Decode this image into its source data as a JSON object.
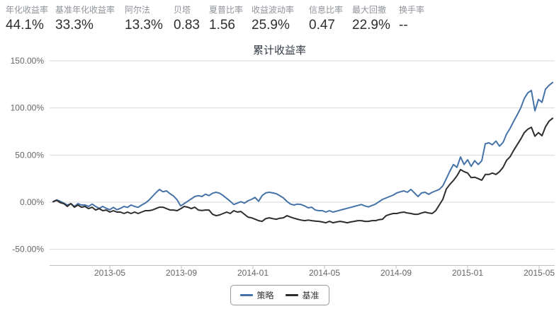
{
  "stats": {
    "items": [
      {
        "label": "年化收益率",
        "value": "44.1%"
      },
      {
        "label": "基准年化收益率",
        "value": "33.3%"
      },
      {
        "label": "阿尔法",
        "value": "13.3%"
      },
      {
        "label": "贝塔",
        "value": "0.83"
      },
      {
        "label": "夏普比率",
        "value": "1.56"
      },
      {
        "label": "收益波动率",
        "value": "25.9%"
      },
      {
        "label": "信息比率",
        "value": "0.47"
      },
      {
        "label": "最大回撤",
        "value": "22.9%"
      },
      {
        "label": "换手率",
        "value": "--"
      }
    ]
  },
  "chart_data": {
    "type": "line",
    "title": "累计收益率",
    "y_unit": "percent",
    "ylim": [
      -50,
      150
    ],
    "grid": "horizontal-on",
    "legend_position": "bottom-center",
    "x_tick_labels": [
      "2013-05",
      "2013-09",
      "2014-01",
      "2014-05",
      "2014-09",
      "2015-01",
      "2015-05"
    ],
    "y_tick_labels": [
      "150.00%",
      "100.00%",
      "50.00%",
      "0.00%",
      "-50.00%"
    ],
    "x_range_months": "2013-01 to 2015-05",
    "colors": {
      "grid": "#d9d9d9",
      "axis": "#c0c0c0",
      "axis_text": "#666666"
    },
    "series": [
      {
        "name": "策略",
        "color": "#4572a7",
        "values": [
          0.5,
          2.5,
          1,
          -1,
          -3,
          -1.5,
          -4.5,
          -1.5,
          -3,
          -3,
          -4.5,
          -2,
          -4.5,
          -6.5,
          -4.5,
          -6.5,
          -8,
          -5.5,
          -8,
          -6.5,
          -4.5,
          -5.5,
          -3,
          -4.5,
          -5.5,
          -3,
          -1,
          2,
          6,
          10,
          13.5,
          11,
          12,
          9,
          6.5,
          2.5,
          -4,
          -1.5,
          1,
          3.5,
          6,
          7,
          6,
          8.5,
          7,
          9.5,
          10.5,
          9.5,
          7,
          4,
          1,
          -2.5,
          -1,
          0.5,
          -1,
          1.5,
          3,
          5,
          1,
          7,
          9.8,
          10.5,
          9.8,
          9,
          6.8,
          4.5,
          0.8,
          -2,
          -3,
          -2,
          -2.5,
          -4,
          -6,
          -5.3,
          -8.3,
          -9,
          -9,
          -10.5,
          -9,
          -10.5,
          -9.5,
          -8.5,
          -7.5,
          -6.5,
          -5.5,
          -4.5,
          -3.5,
          -2.5,
          -4,
          -5,
          -3.5,
          -2,
          0.5,
          3,
          4.5,
          6,
          7.5,
          9.8,
          11,
          12,
          10.5,
          13.6,
          9.8,
          6,
          9.8,
          10.5,
          8.3,
          10.5,
          12,
          13.6,
          17.3,
          25,
          33,
          40,
          37,
          48,
          40,
          45,
          38,
          44,
          40,
          44,
          62,
          63,
          61,
          64.8,
          59.5,
          63.3,
          72.3,
          78.3,
          85.8,
          92.6,
          100,
          110,
          116,
          118.5,
          97,
          109,
          106,
          120,
          124,
          127
        ]
      },
      {
        "name": "基准",
        "color": "#2d2d2d",
        "values": [
          0.5,
          2,
          -0.5,
          -1.5,
          -4.5,
          -1.5,
          -5.3,
          -3,
          -5.3,
          -4.5,
          -6.8,
          -5.3,
          -8.3,
          -6.8,
          -9,
          -8.3,
          -10.5,
          -9,
          -10.5,
          -10.5,
          -12,
          -10.5,
          -12,
          -10.5,
          -12,
          -10.5,
          -9,
          -9,
          -8.3,
          -6.8,
          -5.3,
          -5.3,
          -6.8,
          -8.3,
          -8.3,
          -9,
          -7,
          -4.5,
          -5.3,
          -6.8,
          -5.3,
          -8.3,
          -8.8,
          -8.3,
          -8.3,
          -12.8,
          -14.3,
          -13.5,
          -12,
          -10.5,
          -12,
          -9,
          -10.5,
          -9.8,
          -12.8,
          -15.8,
          -16.6,
          -18.1,
          -19.6,
          -20.3,
          -17.5,
          -16.6,
          -17.5,
          -18.1,
          -17,
          -16.6,
          -14.3,
          -15.8,
          -17,
          -18.1,
          -19,
          -19.6,
          -19,
          -19.6,
          -20,
          -20.3,
          -21,
          -21.8,
          -20.3,
          -21.8,
          -21,
          -20.3,
          -21,
          -21.8,
          -21,
          -20.3,
          -19.6,
          -19.6,
          -20.3,
          -20.3,
          -19.6,
          -19.6,
          -18.5,
          -18.1,
          -14.3,
          -13,
          -12,
          -12,
          -11,
          -10.5,
          -11.5,
          -12,
          -12.8,
          -12.8,
          -11.5,
          -10.5,
          -11.5,
          -12,
          -9,
          -3,
          3,
          14,
          19,
          23,
          28,
          34.6,
          32.4,
          31,
          26,
          26.5,
          25,
          23.3,
          29.4,
          29.4,
          30.9,
          29.4,
          32.4,
          36.9,
          44.4,
          48.2,
          55,
          61,
          67,
          73.8,
          77.5,
          79.5,
          70,
          73.8,
          70.5,
          80,
          86,
          89
        ]
      }
    ]
  }
}
